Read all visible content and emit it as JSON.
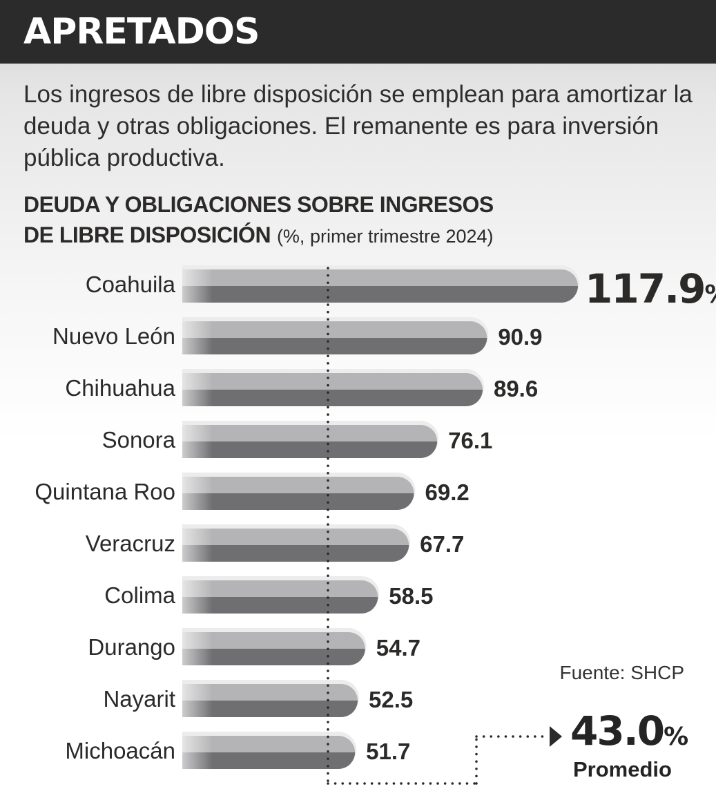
{
  "header": {
    "title": "APRETADOS"
  },
  "subtitle": "Los ingresos de libre disposición se emplean para amortizar la deuda y otras obligaciones. El remanente es para inversión pública productiva.",
  "chart_title": {
    "line1": "DEUDA Y OBLIGACIONES SOBRE INGRESOS",
    "line2": "DE LIBRE DISPOSICIÓN",
    "note": "(%, primer trimestre 2024)"
  },
  "source": "Fuente: SHCP",
  "average": {
    "value": "43.0",
    "unit": "%",
    "label": "Promedio"
  },
  "chart_data": {
    "type": "bar",
    "orientation": "horizontal",
    "categories": [
      "Coahuila",
      "Nuevo León",
      "Chihuahua",
      "Sonora",
      "Quintana Roo",
      "Veracruz",
      "Colima",
      "Durango",
      "Nayarit",
      "Michoacán"
    ],
    "values": [
      117.9,
      90.9,
      89.6,
      76.1,
      69.2,
      67.7,
      58.5,
      54.7,
      52.5,
      51.7
    ],
    "value_labels": [
      "117.9",
      "90.9",
      "89.6",
      "76.1",
      "69.2",
      "67.7",
      "58.5",
      "54.7",
      "52.5",
      "51.7"
    ],
    "first_label_unit": "%",
    "reference_line": {
      "value": 43.0,
      "label": "Promedio",
      "style": "dotted"
    },
    "xlim": [
      0,
      120
    ],
    "grid": false,
    "colors": {
      "bar_top": "#b4b4b6",
      "bar_bottom": "#6f6f72",
      "bar_highlight": "#ececec",
      "text": "#2b2a29",
      "dots": "#2b2a29"
    }
  }
}
